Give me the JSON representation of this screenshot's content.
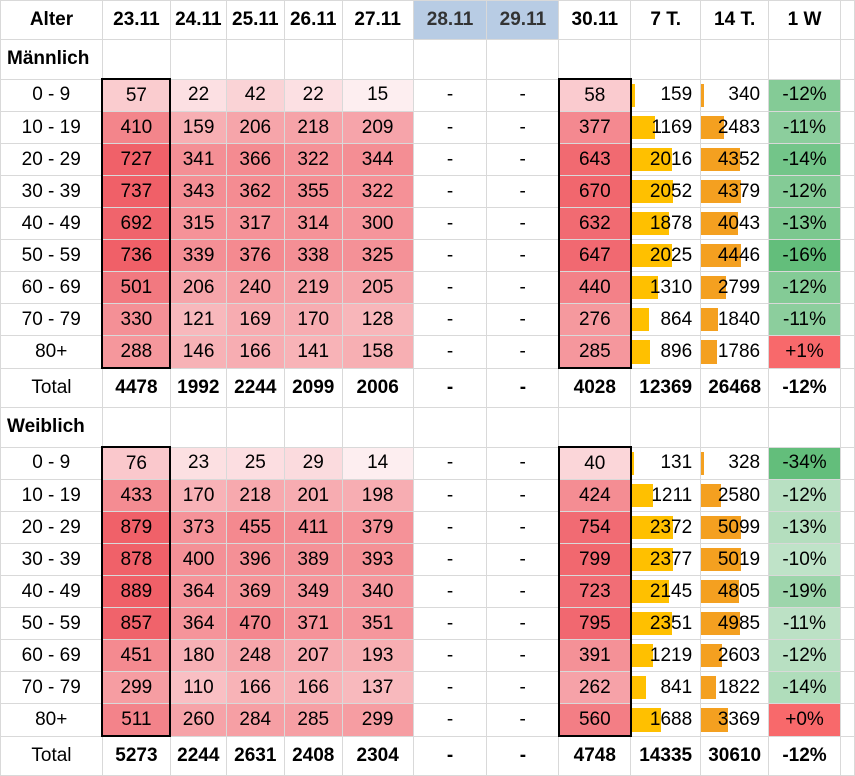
{
  "header": {
    "age": "Alter",
    "dates": [
      "23.11",
      "24.11",
      "25.11",
      "26.11",
      "27.11",
      "28.11",
      "29.11",
      "30.11"
    ],
    "sum7": "7 T.",
    "sum14": "14 T.",
    "change": "1 W"
  },
  "colors": {
    "heat_low": "#fdeef0",
    "heat_high": "#f06068",
    "bar7": "#ffc000",
    "bar14": "#f4a020",
    "green_dark": "#63be7b",
    "green_light": "#e6f2e8",
    "red": "#f8696b",
    "weekend_header": "#b8cce4"
  },
  "sections": [
    {
      "title": "Männlich",
      "rows": [
        {
          "age": "0 - 9",
          "d": [
            "57",
            "22",
            "42",
            "22",
            "15",
            "-",
            "-",
            "58"
          ],
          "s7": "159",
          "s14": "340",
          "w": "-12%"
        },
        {
          "age": "10 - 19",
          "d": [
            "410",
            "159",
            "206",
            "218",
            "209",
            "-",
            "-",
            "377"
          ],
          "s7": "1169",
          "s14": "2483",
          "w": "-11%"
        },
        {
          "age": "20 - 29",
          "d": [
            "727",
            "341",
            "366",
            "322",
            "344",
            "-",
            "-",
            "643"
          ],
          "s7": "2016",
          "s14": "4352",
          "w": "-14%"
        },
        {
          "age": "30 - 39",
          "d": [
            "737",
            "343",
            "362",
            "355",
            "322",
            "-",
            "-",
            "670"
          ],
          "s7": "2052",
          "s14": "4379",
          "w": "-12%"
        },
        {
          "age": "40 - 49",
          "d": [
            "692",
            "315",
            "317",
            "314",
            "300",
            "-",
            "-",
            "632"
          ],
          "s7": "1878",
          "s14": "4043",
          "w": "-13%"
        },
        {
          "age": "50 - 59",
          "d": [
            "736",
            "339",
            "376",
            "338",
            "325",
            "-",
            "-",
            "647"
          ],
          "s7": "2025",
          "s14": "4446",
          "w": "-16%"
        },
        {
          "age": "60 - 69",
          "d": [
            "501",
            "206",
            "240",
            "219",
            "205",
            "-",
            "-",
            "440"
          ],
          "s7": "1310",
          "s14": "2799",
          "w": "-12%"
        },
        {
          "age": "70 - 79",
          "d": [
            "330",
            "121",
            "169",
            "170",
            "128",
            "-",
            "-",
            "276"
          ],
          "s7": "864",
          "s14": "1840",
          "w": "-11%"
        },
        {
          "age": "80+",
          "d": [
            "288",
            "146",
            "166",
            "141",
            "158",
            "-",
            "-",
            "285"
          ],
          "s7": "896",
          "s14": "1786",
          "w": "+1%"
        }
      ],
      "total": {
        "label": "Total",
        "d": [
          "4478",
          "1992",
          "2244",
          "2099",
          "2006",
          "-",
          "-",
          "4028"
        ],
        "s7": "12369",
        "s14": "26468",
        "w": "-12%"
      }
    },
    {
      "title": "Weiblich",
      "rows": [
        {
          "age": "0 - 9",
          "d": [
            "76",
            "23",
            "25",
            "29",
            "14",
            "-",
            "-",
            "40"
          ],
          "s7": "131",
          "s14": "328",
          "w": "-34%"
        },
        {
          "age": "10 - 19",
          "d": [
            "433",
            "170",
            "218",
            "201",
            "198",
            "-",
            "-",
            "424"
          ],
          "s7": "1211",
          "s14": "2580",
          "w": "-12%"
        },
        {
          "age": "20 - 29",
          "d": [
            "879",
            "373",
            "455",
            "411",
            "379",
            "-",
            "-",
            "754"
          ],
          "s7": "2372",
          "s14": "5099",
          "w": "-13%"
        },
        {
          "age": "30 - 39",
          "d": [
            "878",
            "400",
            "396",
            "389",
            "393",
            "-",
            "-",
            "799"
          ],
          "s7": "2377",
          "s14": "5019",
          "w": "-10%"
        },
        {
          "age": "40 - 49",
          "d": [
            "889",
            "364",
            "369",
            "349",
            "340",
            "-",
            "-",
            "723"
          ],
          "s7": "2145",
          "s14": "4805",
          "w": "-19%"
        },
        {
          "age": "50 - 59",
          "d": [
            "857",
            "364",
            "470",
            "371",
            "351",
            "-",
            "-",
            "795"
          ],
          "s7": "2351",
          "s14": "4985",
          "w": "-11%"
        },
        {
          "age": "60 - 69",
          "d": [
            "451",
            "180",
            "248",
            "207",
            "193",
            "-",
            "-",
            "391"
          ],
          "s7": "1219",
          "s14": "2603",
          "w": "-12%"
        },
        {
          "age": "70 - 79",
          "d": [
            "299",
            "110",
            "166",
            "166",
            "137",
            "-",
            "-",
            "262"
          ],
          "s7": "841",
          "s14": "1822",
          "w": "-14%"
        },
        {
          "age": "80+",
          "d": [
            "511",
            "260",
            "284",
            "285",
            "299",
            "-",
            "-",
            "560"
          ],
          "s7": "1688",
          "s14": "3369",
          "w": "+0%"
        }
      ],
      "total": {
        "label": "Total",
        "d": [
          "5273",
          "2244",
          "2631",
          "2408",
          "2304",
          "-",
          "-",
          "4748"
        ],
        "s7": "14335",
        "s14": "30610",
        "w": "-12%"
      }
    }
  ]
}
